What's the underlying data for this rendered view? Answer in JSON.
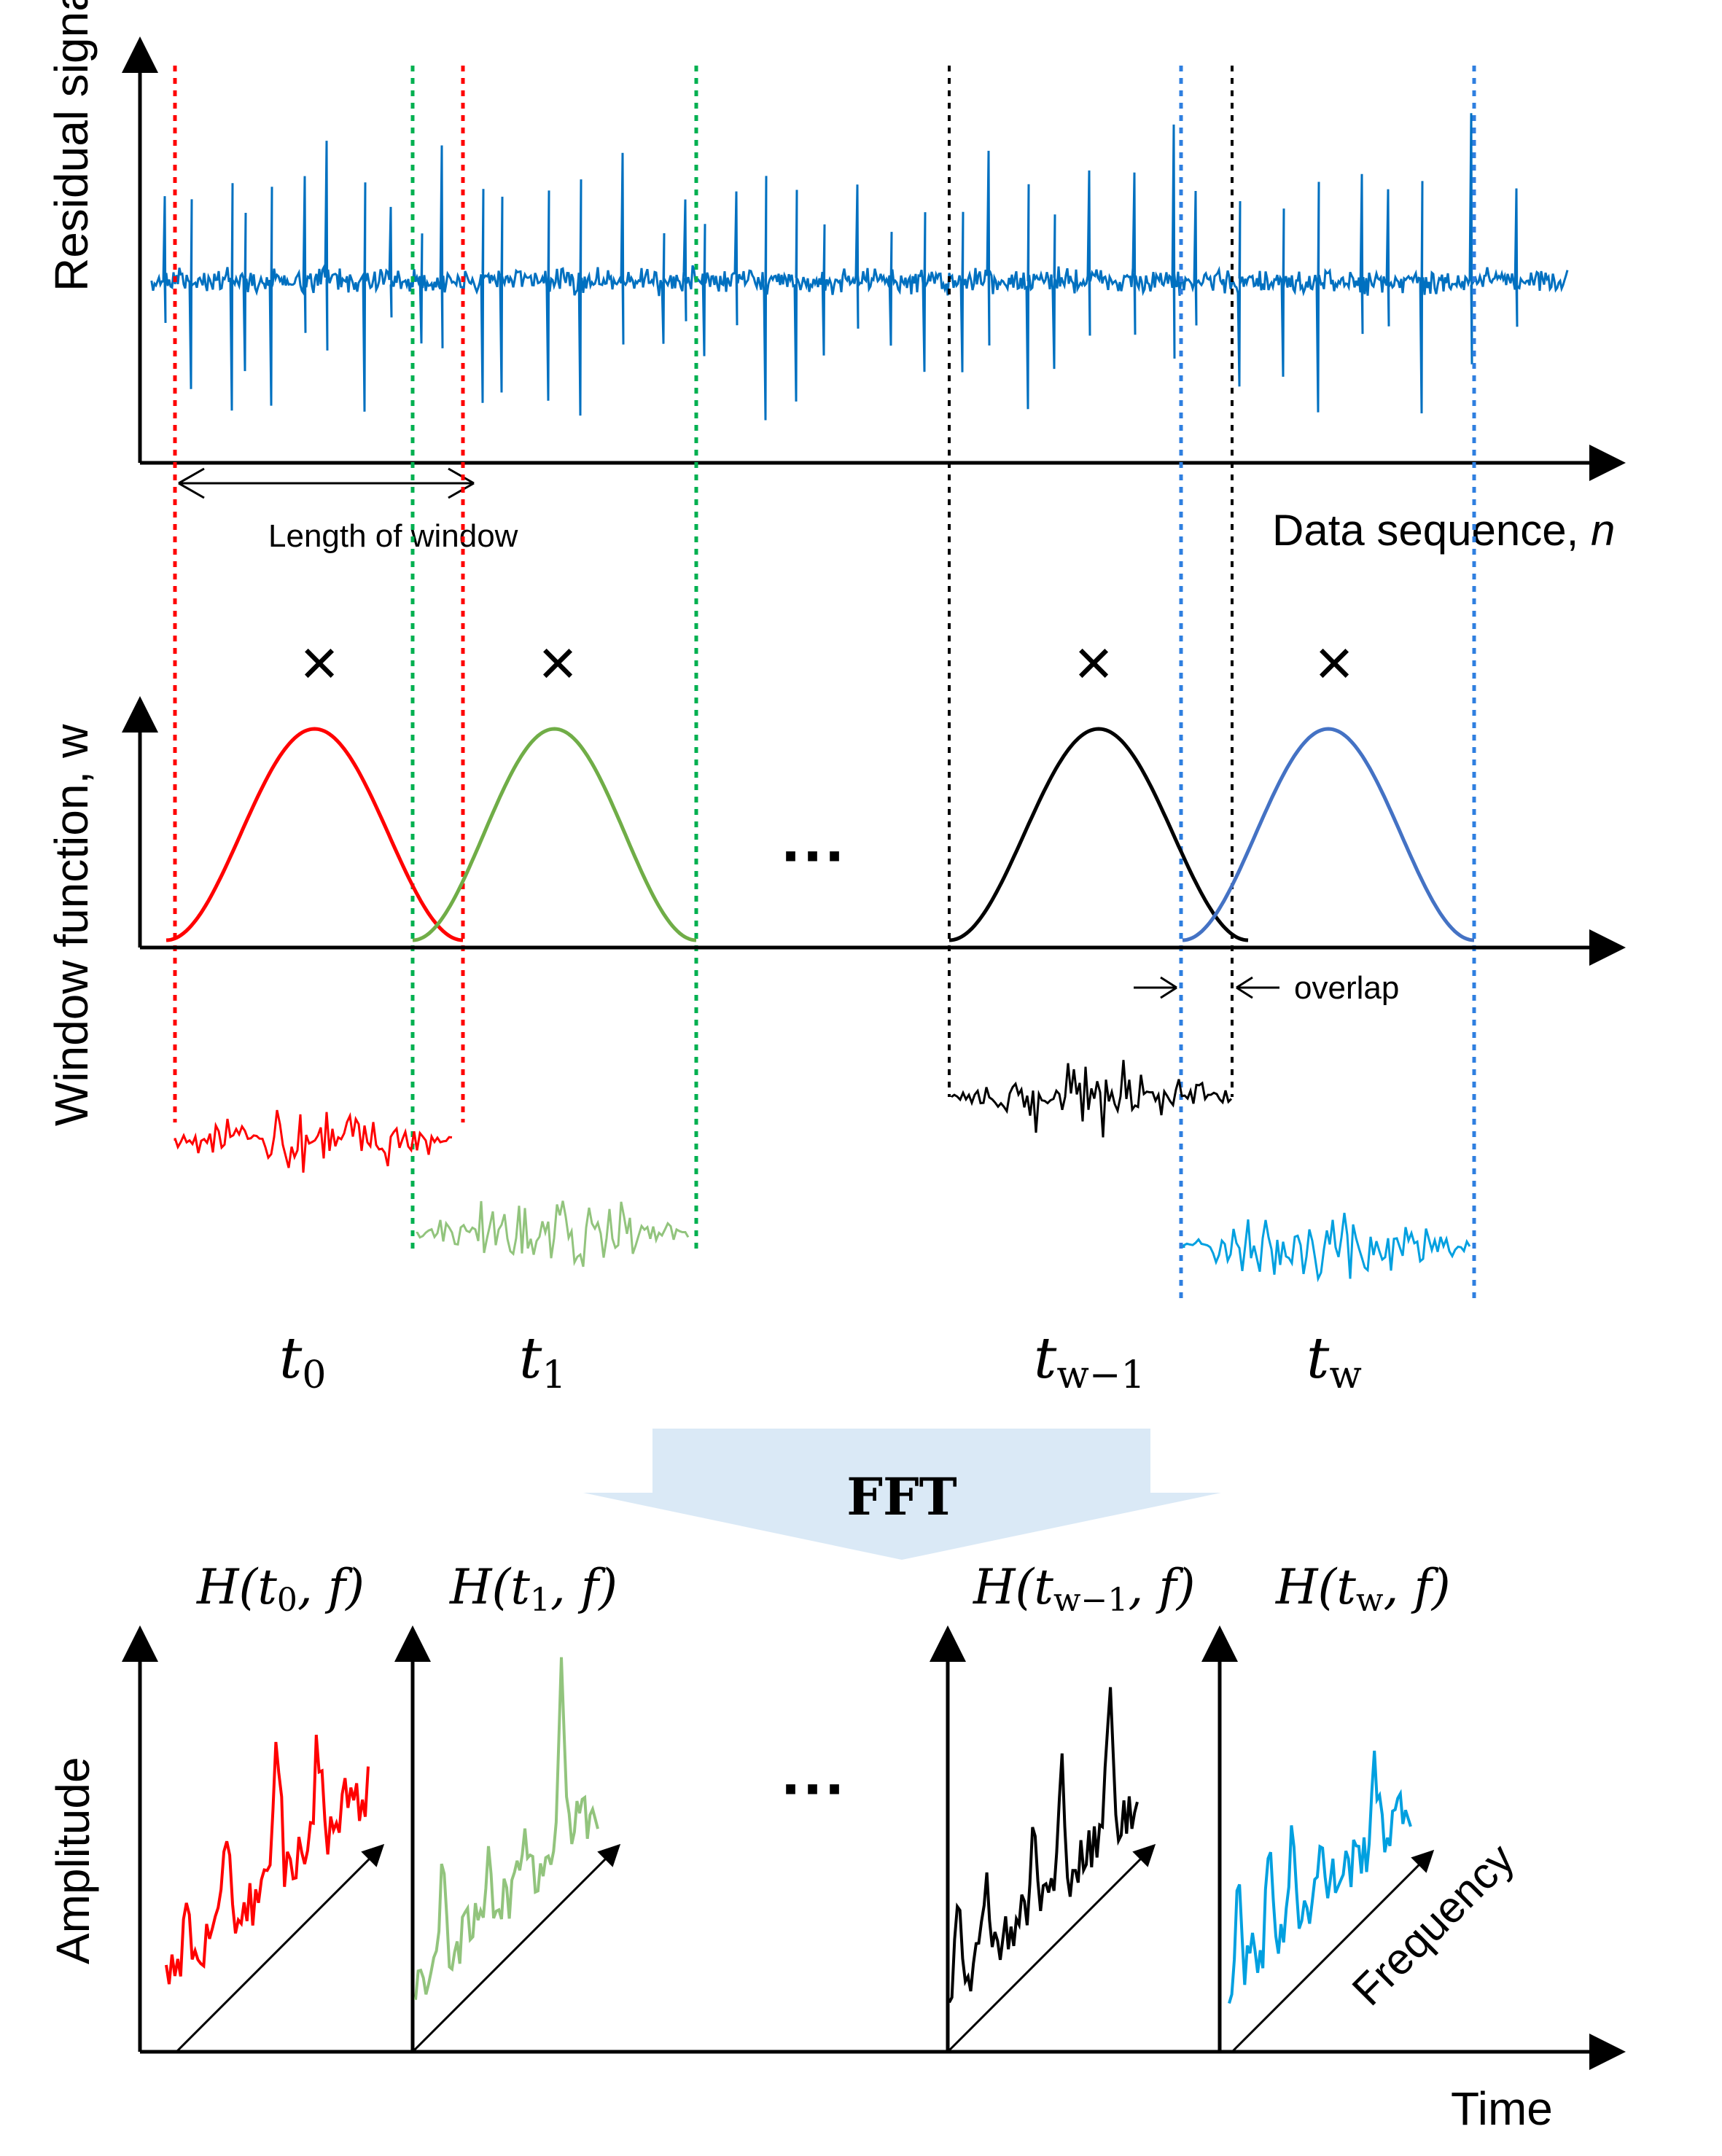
{
  "residual": {
    "ylabel": "Residual signal, e",
    "xlabel_text": "Data sequence, ",
    "xlabel_var": "n",
    "length_label": "Length of window",
    "color": "#0070C0"
  },
  "window_panel": {
    "ylabel": "Window function, w",
    "multiply_symbol": "×",
    "ellipsis": "···",
    "overlap_label": "overlap"
  },
  "windows": [
    {
      "key": "t0",
      "t": "t",
      "sub": "0",
      "color": "#FF0000",
      "style": "solid"
    },
    {
      "key": "t1",
      "t": "t",
      "sub": "1",
      "color": "#70AD47",
      "style": "solid"
    },
    {
      "key": "tw1",
      "t": "t",
      "sub": "w−1",
      "color": "#000000",
      "style": "solid"
    },
    {
      "key": "tw",
      "t": "t",
      "sub": "w",
      "color": "#4472C4",
      "style": "solid"
    }
  ],
  "fft": {
    "label": "FFT",
    "arrow_color": "#DAE9F6"
  },
  "spectra": {
    "ylabel": "Amplitude",
    "xlabel": "Time",
    "freq_label": "Frequency",
    "ellipsis": "···",
    "titles": [
      {
        "pre": "H(",
        "t": "t",
        "sub": "0",
        "post": ", f)"
      },
      {
        "pre": "H(",
        "t": "t",
        "sub": "1",
        "post": ", f)"
      },
      {
        "pre": "H(",
        "t": "t",
        "sub": "w−1",
        "post": ", f)"
      },
      {
        "pre": "H(",
        "t": "t",
        "sub": "w",
        "post": ", f)"
      }
    ],
    "colors": [
      "#FF0000",
      "#92C47D",
      "#000000",
      "#00A0E0"
    ]
  }
}
